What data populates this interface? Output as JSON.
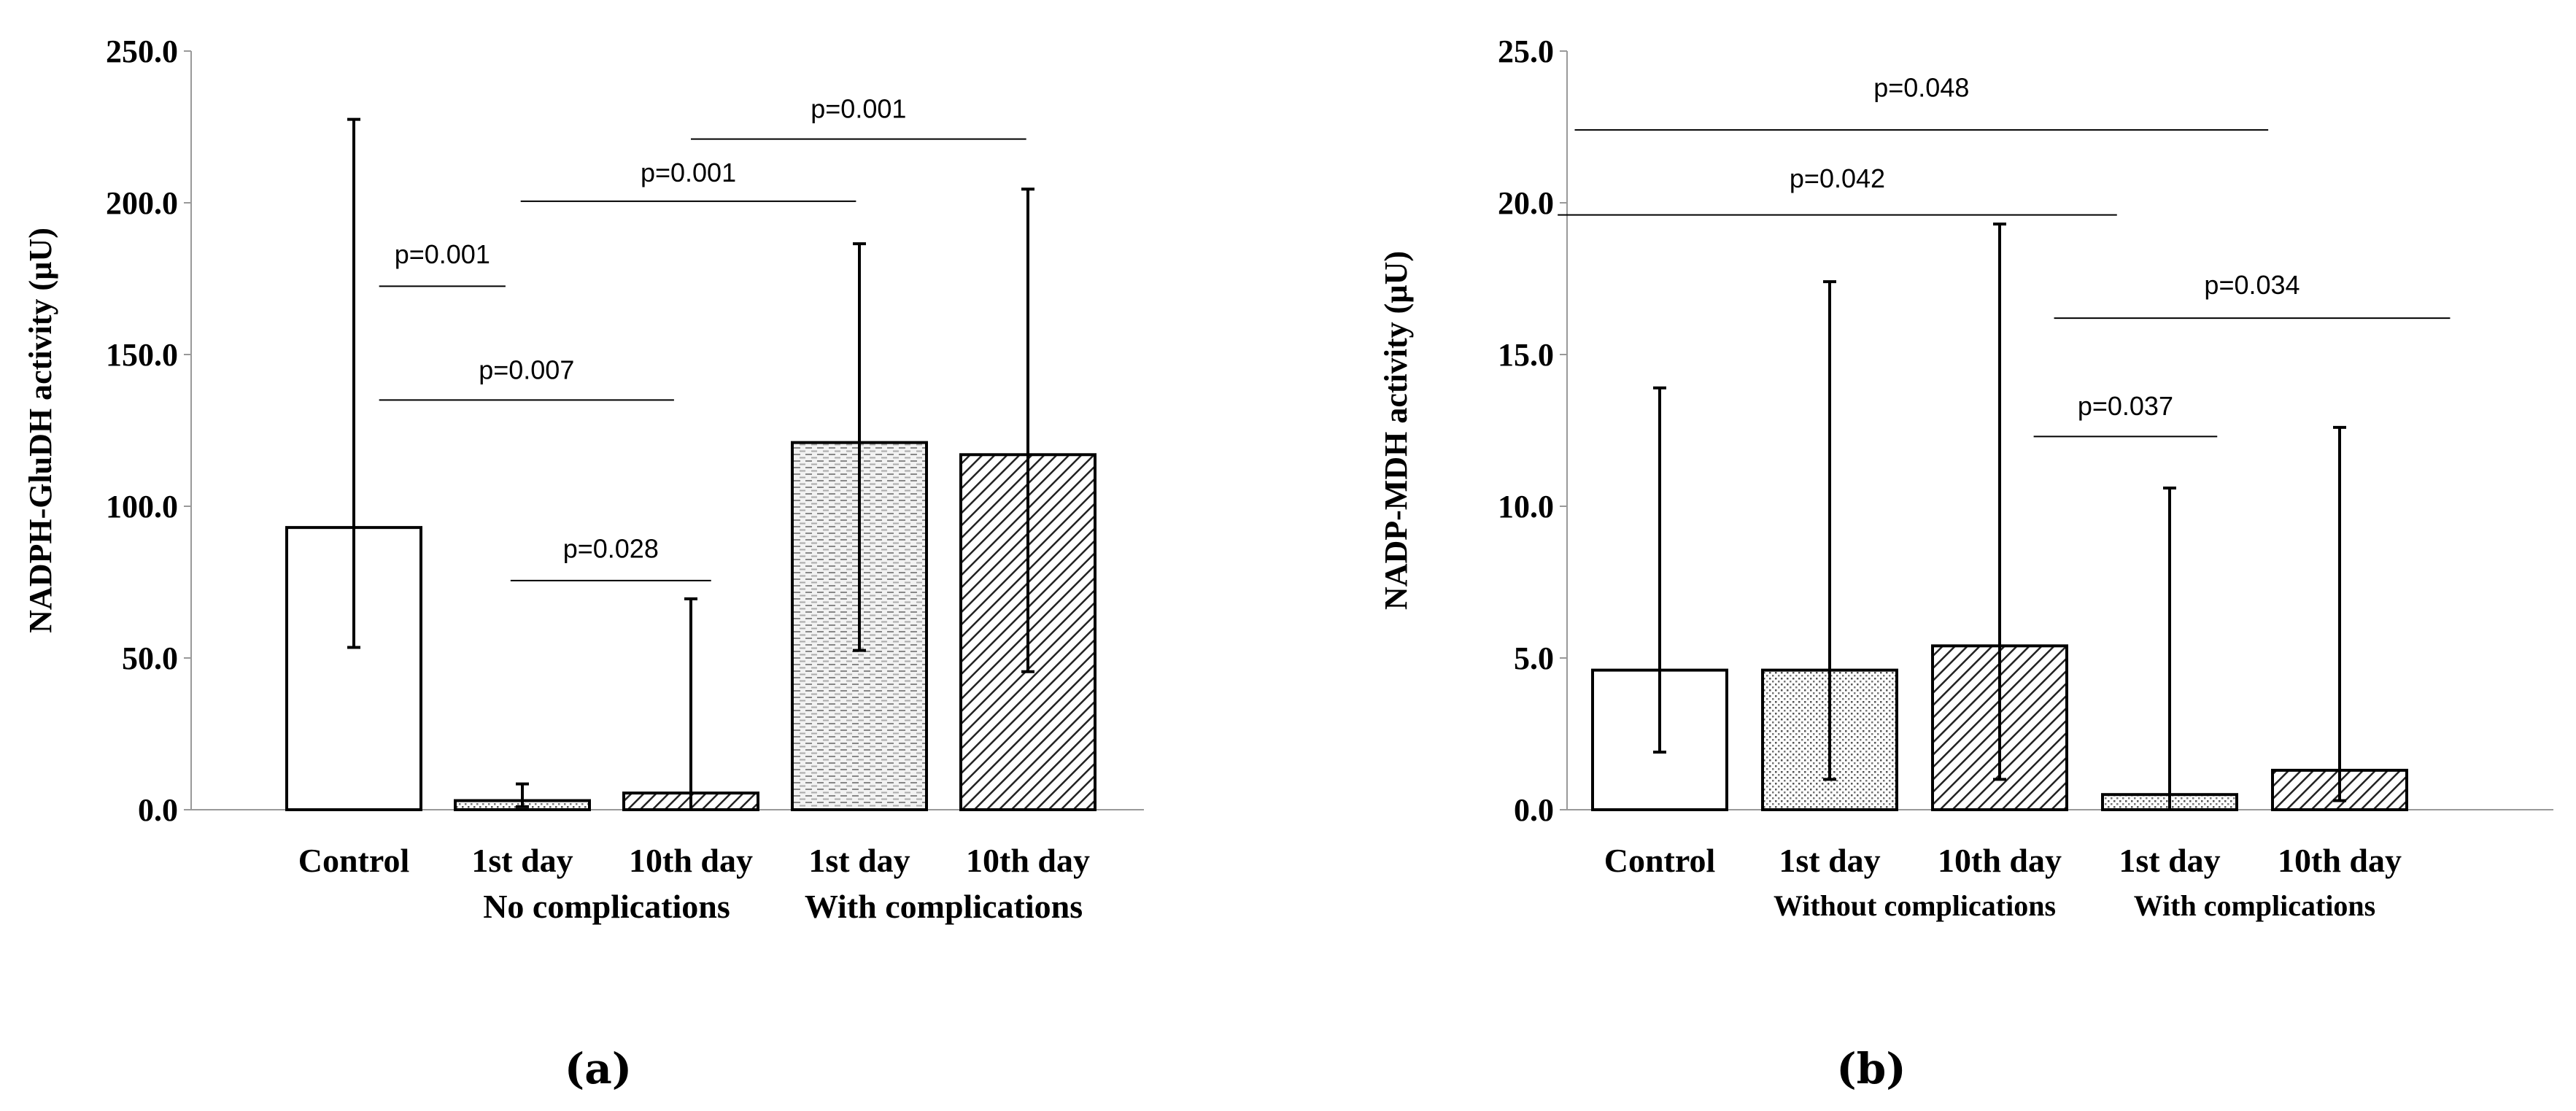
{
  "chart_data": [
    {
      "type": "bar",
      "panel_label": "(a)",
      "ylabel": "NADPH-GluDH activity (µU)",
      "ylim": [
        0,
        250
      ],
      "yticks": [
        "0.0",
        "50.0",
        "100.0",
        "150.0",
        "200.0",
        "250.0"
      ],
      "categories": [
        "Control",
        "1st day",
        "10th day",
        "1st day",
        "10th day"
      ],
      "groups": [
        {
          "label": "No complications",
          "from": 1,
          "to": 2
        },
        {
          "label": "With complications",
          "from": 3,
          "to": 4
        }
      ],
      "fills": [
        "none",
        "dots",
        "diag",
        "dash",
        "diag"
      ],
      "values": [
        93.0,
        3.0,
        5.5,
        121.0,
        117.0
      ],
      "err_low": [
        53.5,
        1.0,
        0.0,
        52.5,
        45.5
      ],
      "err_high": [
        227.5,
        8.5,
        69.5,
        186.5,
        204.5
      ],
      "annotations": [
        {
          "text": "p=0.001",
          "y": 172.5,
          "x1": 0.15,
          "x2": 0.9,
          "text_y": 180
        },
        {
          "text": "p=0.007",
          "y": 135,
          "x1": 0.15,
          "x2": 1.9,
          "text_y": 142
        },
        {
          "text": "p=0.028",
          "y": 75.5,
          "x1": 0.93,
          "x2": 2.12,
          "text_y": 83
        },
        {
          "text": "p=0.001",
          "y": 200.5,
          "x1": 0.99,
          "x2": 2.98,
          "text_y": 207
        },
        {
          "text": "p=0.001",
          "y": 221,
          "x1": 2.0,
          "x2": 3.99,
          "text_y": 228
        }
      ]
    },
    {
      "type": "bar",
      "panel_label": "(b)",
      "ylabel": "NADP-MDH activity (µU)",
      "ylim": [
        0,
        25
      ],
      "yticks": [
        "0.0",
        "5.0",
        "10.0",
        "15.0",
        "20.0",
        "25.0"
      ],
      "categories": [
        "Control",
        "1st day",
        "10th day",
        "1st day",
        "10th day"
      ],
      "groups": [
        {
          "label": "Without complications",
          "from": 1,
          "to": 2
        },
        {
          "label": "With complications",
          "from": 3,
          "to": 4
        }
      ],
      "fills": [
        "none",
        "dots",
        "diag",
        "dots",
        "diag"
      ],
      "values": [
        4.6,
        4.6,
        5.4,
        0.5,
        1.3
      ],
      "err_low": [
        1.9,
        1.0,
        1.0,
        0.0,
        0.3
      ],
      "err_high": [
        13.9,
        17.4,
        19.3,
        10.6,
        12.6
      ],
      "annotations": [
        {
          "text": "p=0.048",
          "y": 22.4,
          "x1": -0.5,
          "x2": 3.58,
          "text_y": 23.5
        },
        {
          "text": "p=0.042",
          "y": 19.6,
          "x1": -0.6,
          "x2": 2.69,
          "text_y": 20.5
        },
        {
          "text": "p=0.034",
          "y": 16.2,
          "x1": 2.32,
          "x2": 4.65,
          "text_y": 17.0
        },
        {
          "text": "p=0.037",
          "y": 12.3,
          "x1": 2.2,
          "x2": 3.28,
          "text_y": 13.0
        }
      ]
    }
  ]
}
